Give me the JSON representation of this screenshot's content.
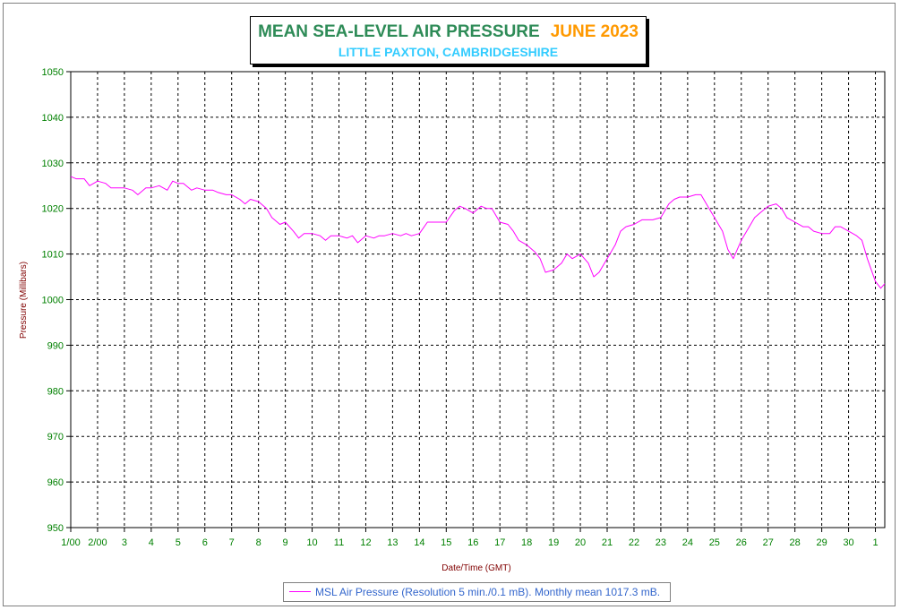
{
  "title": {
    "main": "MEAN SEA-LEVEL AIR PRESSURE",
    "month": "JUNE 2023",
    "subtitle": "LITTLE PAXTON, CAMBRIDGESHIRE"
  },
  "legend": {
    "label": "MSL Air Pressure (Resolution 5 min./0.1 mB). Monthly mean 1017.3 mB."
  },
  "colors": {
    "series": "#ff00ff",
    "title_main": "#2e8b57",
    "title_month": "#ff9900",
    "subtitle": "#33ccff",
    "tick_labels": "#008000",
    "axis_titles": "#800000",
    "legend_text": "#3366cc"
  },
  "chart_data": {
    "type": "line",
    "xlabel": "Date/Time (GMT)",
    "ylabel": "Pressure (Millibars)",
    "ylim": [
      950,
      1050
    ],
    "y_ticks": [
      "950",
      "960",
      "970",
      "980",
      "990",
      "1000",
      "1010",
      "1020",
      "1030",
      "1040",
      "1050"
    ],
    "x_ticks": [
      "1/00",
      "2/00",
      "3",
      "4",
      "5",
      "6",
      "7",
      "8",
      "9",
      "10",
      "11",
      "12",
      "13",
      "14",
      "15",
      "16",
      "17",
      "18",
      "19",
      "20",
      "21",
      "22",
      "23",
      "24",
      "25",
      "26",
      "27",
      "28",
      "29",
      "30",
      "1"
    ],
    "x_unit": "day of month (June 2023; 31 = 1 July 00:00)",
    "xlim": [
      1,
      31.35
    ],
    "grid": true,
    "legend_position": "bottom-center",
    "series": [
      {
        "name": "MSL Air Pressure (Resolution 5 min./0.1 mB). Monthly mean 1017.3 mB.",
        "x": [
          1.0,
          1.2,
          1.5,
          1.7,
          2.0,
          2.3,
          2.5,
          2.8,
          3.0,
          3.3,
          3.5,
          3.8,
          4.0,
          4.3,
          4.6,
          4.8,
          5.0,
          5.2,
          5.5,
          5.7,
          6.0,
          6.3,
          6.5,
          6.8,
          7.0,
          7.3,
          7.5,
          7.7,
          8.0,
          8.3,
          8.5,
          8.8,
          9.0,
          9.3,
          9.5,
          9.7,
          10.0,
          10.3,
          10.5,
          10.7,
          11.0,
          11.3,
          11.5,
          11.7,
          12.0,
          12.3,
          12.5,
          12.7,
          13.0,
          13.3,
          13.5,
          13.7,
          14.0,
          14.3,
          14.5,
          14.7,
          15.0,
          15.3,
          15.5,
          15.7,
          16.0,
          16.3,
          16.5,
          16.7,
          17.0,
          17.3,
          17.5,
          17.7,
          18.0,
          18.3,
          18.5,
          18.7,
          19.0,
          19.3,
          19.5,
          19.7,
          20.0,
          20.3,
          20.5,
          20.7,
          21.0,
          21.3,
          21.5,
          21.7,
          22.0,
          22.3,
          22.5,
          22.7,
          23.0,
          23.3,
          23.5,
          23.7,
          24.0,
          24.3,
          24.5,
          24.7,
          25.0,
          25.3,
          25.5,
          25.7,
          26.0,
          26.3,
          26.5,
          26.7,
          27.0,
          27.3,
          27.5,
          27.7,
          28.0,
          28.3,
          28.5,
          28.7,
          29.0,
          29.3,
          29.5,
          29.7,
          30.0,
          30.3,
          30.5,
          30.7,
          31.0,
          31.2,
          31.35
        ],
        "values": [
          1027,
          1026.5,
          1026.5,
          1025,
          1026,
          1025.5,
          1024.5,
          1024.5,
          1024.5,
          1024,
          1023,
          1024.5,
          1024.5,
          1025,
          1024,
          1026,
          1025.5,
          1025.5,
          1024,
          1024.5,
          1024,
          1024,
          1023.5,
          1023,
          1023,
          1022,
          1021,
          1022,
          1021.5,
          1020,
          1018,
          1016.5,
          1017,
          1015,
          1013.5,
          1014.5,
          1014.5,
          1014,
          1013,
          1014,
          1014,
          1013.5,
          1014,
          1012.5,
          1014,
          1013.5,
          1014,
          1014,
          1014.5,
          1014,
          1014.5,
          1014,
          1014.5,
          1017,
          1017,
          1017,
          1017,
          1019.5,
          1020.5,
          1020,
          1019,
          1020.5,
          1020,
          1020,
          1017,
          1016.5,
          1015,
          1013,
          1012,
          1010.5,
          1009,
          1006,
          1006.5,
          1008,
          1010,
          1009,
          1010,
          1008,
          1005,
          1006,
          1009,
          1012,
          1015,
          1016,
          1016.5,
          1017.5,
          1017.5,
          1017.5,
          1018,
          1021,
          1022,
          1022.5,
          1022.5,
          1023,
          1023,
          1021,
          1018,
          1015,
          1011,
          1009,
          1013,
          1016,
          1018,
          1019,
          1020.5,
          1021,
          1020,
          1018,
          1017,
          1016,
          1016,
          1015,
          1014.5,
          1014.5,
          1016,
          1016,
          1015,
          1014,
          1013,
          1009,
          1004,
          1002.5,
          1003.5
        ]
      }
    ]
  }
}
